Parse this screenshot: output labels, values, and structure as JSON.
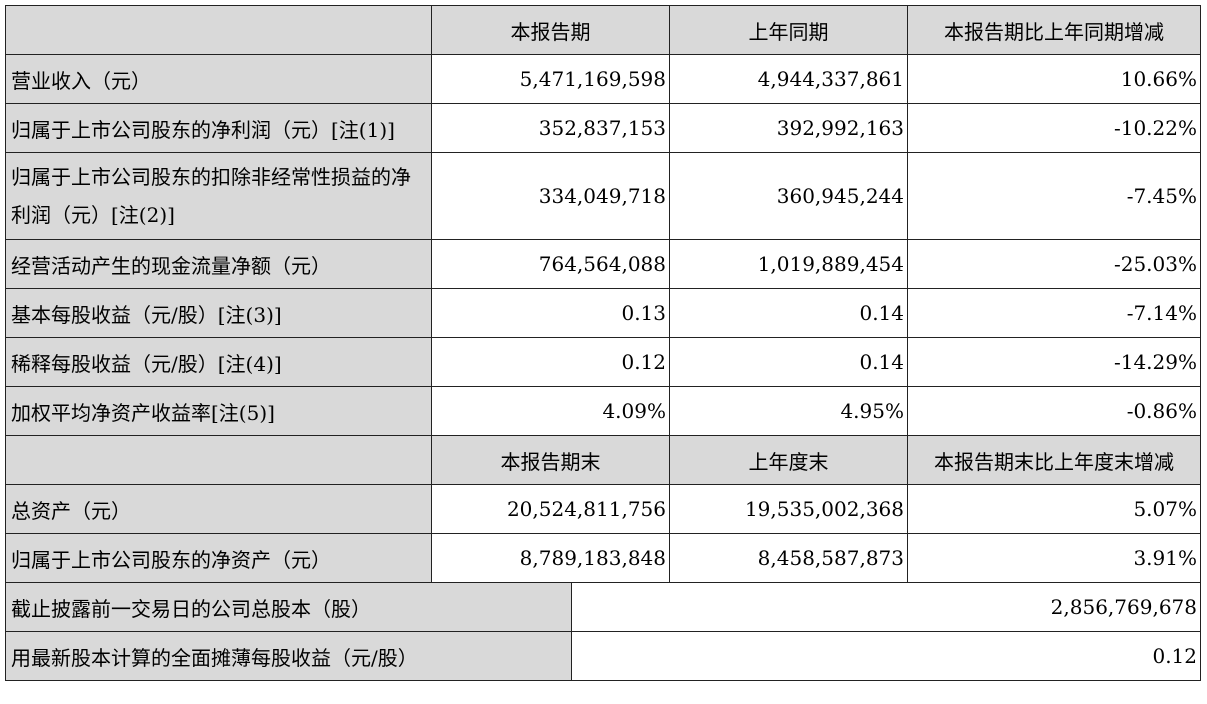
{
  "header_1": {
    "corner": "",
    "col1": "本报告期",
    "col2": "上年同期",
    "col3": "本报告期比上年同期增减"
  },
  "rows_1": [
    {
      "label": "营业收入（元）",
      "current": "5,471,169,598",
      "prior": "4,944,337,861",
      "change": "10.66%"
    },
    {
      "label": "归属于上市公司股东的净利润（元）[注(1)]",
      "current": "352,837,153",
      "prior": "392,992,163",
      "change": "-10.22%"
    },
    {
      "label": "归属于上市公司股东的扣除非经常性损益的净利润（元）[注(2)]",
      "current": "334,049,718",
      "prior": "360,945,244",
      "change": "-7.45%"
    },
    {
      "label": "经营活动产生的现金流量净额（元）",
      "current": "764,564,088",
      "prior": "1,019,889,454",
      "change": "-25.03%"
    },
    {
      "label": "基本每股收益（元/股）[注(3)]",
      "current": "0.13",
      "prior": "0.14",
      "change": "-7.14%"
    },
    {
      "label": "稀释每股收益（元/股）[注(4)]",
      "current": "0.12",
      "prior": "0.14",
      "change": "-14.29%"
    },
    {
      "label": "加权平均净资产收益率[注(5)]",
      "current": "4.09%",
      "prior": "4.95%",
      "change": "-0.86%"
    }
  ],
  "header_2": {
    "corner": "",
    "col1": "本报告期末",
    "col2": "上年度末",
    "col3": "本报告期末比上年度末增减"
  },
  "rows_2": [
    {
      "label": "总资产（元）",
      "current": "20,524,811,756",
      "prior": "19,535,002,368",
      "change": "5.07%"
    },
    {
      "label": "归属于上市公司股东的净资产（元）",
      "current": "8,789,183,848",
      "prior": "8,458,587,873",
      "change": "3.91%"
    }
  ],
  "rows_3": [
    {
      "label": "截止披露前一交易日的公司总股本（股）",
      "value": "2,856,769,678"
    },
    {
      "label": "用最新股本计算的全面摊薄每股收益（元/股）",
      "value": "0.12"
    }
  ]
}
